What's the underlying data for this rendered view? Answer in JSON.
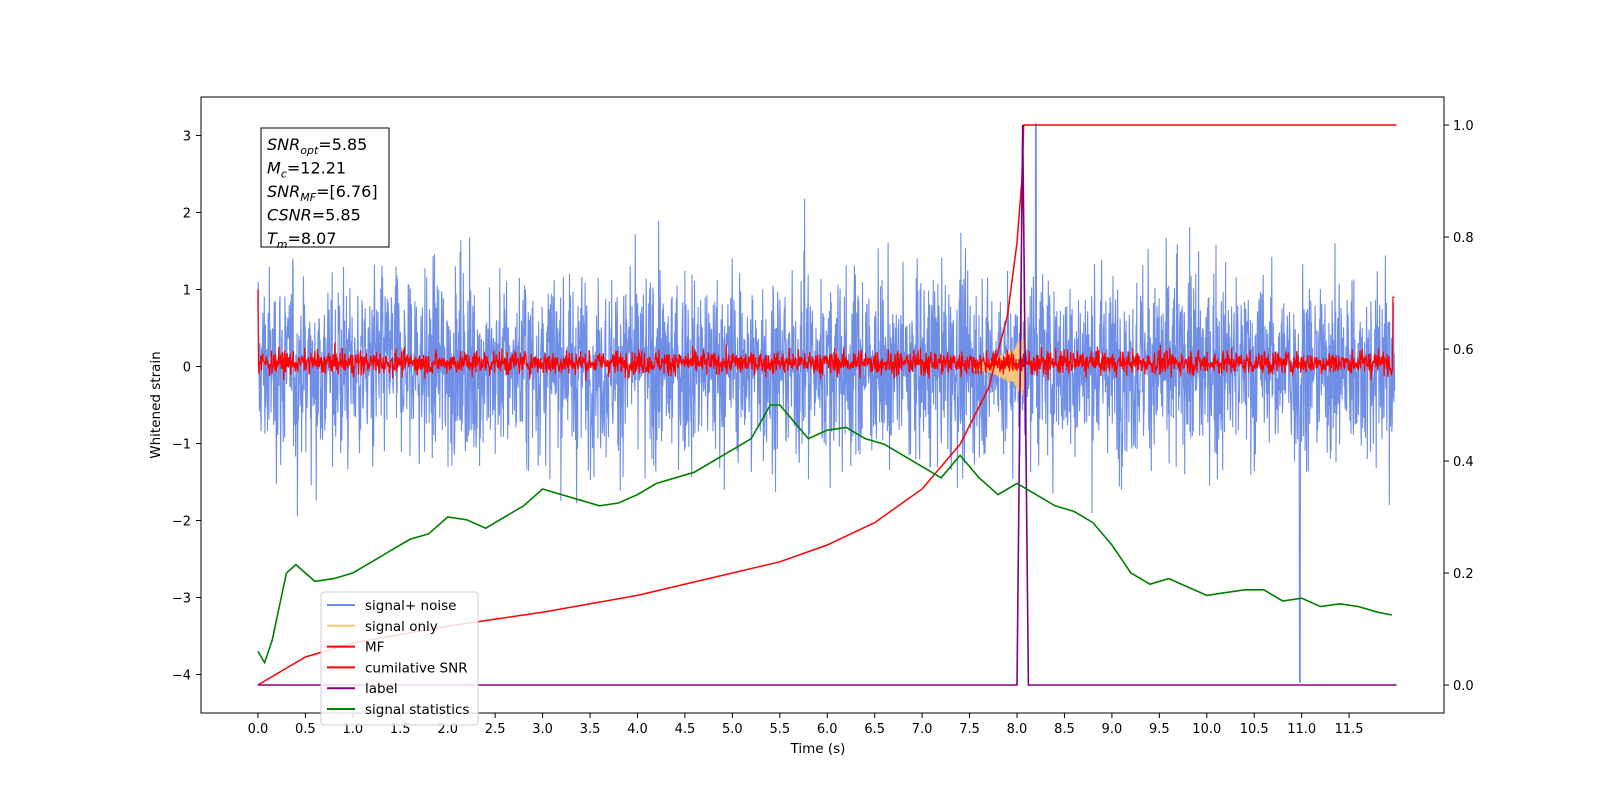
{
  "chart_data": {
    "type": "line",
    "xlabel": "Time (s)",
    "ylabel": "Whitened strain",
    "xlim": [
      -0.6,
      12.5
    ],
    "ylim": [
      -4.5,
      3.5
    ],
    "y2lim": [
      -0.05,
      1.05
    ],
    "x_ticks": [
      "0.0",
      "0.5",
      "1.0",
      "1.5",
      "2.0",
      "2.5",
      "3.0",
      "3.5",
      "4.0",
      "4.5",
      "5.0",
      "5.5",
      "6.0",
      "6.5",
      "7.0",
      "7.5",
      "8.0",
      "8.5",
      "9.0",
      "9.5",
      "10.0",
      "10.5",
      "11.0",
      "11.5"
    ],
    "y_ticks": [
      "3",
      "2",
      "1",
      "0",
      "−1",
      "−2",
      "−3",
      "−4"
    ],
    "y2_ticks": [
      "1.0",
      "0.8",
      "0.6",
      "0.4",
      "0.2",
      "0.0"
    ],
    "info_box": [
      {
        "main": "SNR",
        "sub": "opt",
        "rest": "=5.85"
      },
      {
        "main": "M",
        "sub": "c",
        "rest": "=12.21"
      },
      {
        "main": "SNR",
        "sub": "MF",
        "rest": "=[6.76]"
      },
      {
        "main": "CSNR",
        "sub": "",
        "rest": "=5.85"
      },
      {
        "main": "T",
        "sub": "m",
        "rest": "=8.07"
      }
    ],
    "legend_position": "lower-left",
    "series": [
      {
        "name": "signal+ noise",
        "color": "#6f8ee6",
        "axis": "left",
        "description": "whitened noisy strain, spans roughly -2.2 to 2.3 with spikes to 3.1 and -4.1"
      },
      {
        "name": "signal only",
        "color": "#f5c77e",
        "axis": "left",
        "description": "chirp visible near t=7.6-8.1 s, amplitude up to ~0.4"
      },
      {
        "name": "MF",
        "color": "#ff0000",
        "axis": "left",
        "description": "matched filter output, band roughly -0.2 to 0.3, starts at 1.0"
      },
      {
        "name": "cumilative SNR",
        "color": "#ff0000",
        "axis": "right",
        "x": [
          0.0,
          0.5,
          1.0,
          2.0,
          3.0,
          4.0,
          5.0,
          5.5,
          6.0,
          6.5,
          7.0,
          7.4,
          7.7,
          7.9,
          8.0,
          8.05,
          8.07,
          11.5,
          12.0
        ],
        "y": [
          0.0,
          0.05,
          0.075,
          0.105,
          0.13,
          0.16,
          0.2,
          0.22,
          0.25,
          0.29,
          0.35,
          0.43,
          0.53,
          0.66,
          0.79,
          0.9,
          1.0,
          1.0,
          1.0
        ]
      },
      {
        "name": "label",
        "color": "#800080",
        "axis": "right",
        "x": [
          0.0,
          8.0,
          8.06,
          8.12,
          12.0
        ],
        "y": [
          0.0,
          0.0,
          1.0,
          0.0,
          0.0
        ]
      },
      {
        "name": "signal statistics",
        "color": "#008000",
        "axis": "right",
        "x": [
          0.0,
          0.07,
          0.15,
          0.3,
          0.4,
          0.5,
          0.6,
          0.8,
          1.0,
          1.2,
          1.4,
          1.6,
          1.8,
          2.0,
          2.2,
          2.4,
          2.6,
          2.8,
          3.0,
          3.2,
          3.4,
          3.6,
          3.8,
          4.0,
          4.2,
          4.4,
          4.6,
          4.8,
          5.0,
          5.2,
          5.4,
          5.5,
          5.6,
          5.8,
          6.0,
          6.2,
          6.4,
          6.6,
          6.8,
          7.0,
          7.2,
          7.4,
          7.6,
          7.8,
          8.0,
          8.2,
          8.4,
          8.6,
          8.8,
          9.0,
          9.2,
          9.4,
          9.6,
          9.8,
          10.0,
          10.2,
          10.4,
          10.6,
          10.8,
          11.0,
          11.2,
          11.4,
          11.6,
          11.8,
          11.95
        ],
        "y": [
          0.06,
          0.04,
          0.08,
          0.2,
          0.215,
          0.2,
          0.185,
          0.19,
          0.2,
          0.22,
          0.24,
          0.26,
          0.27,
          0.3,
          0.295,
          0.28,
          0.3,
          0.32,
          0.35,
          0.34,
          0.33,
          0.32,
          0.325,
          0.34,
          0.36,
          0.37,
          0.38,
          0.4,
          0.42,
          0.44,
          0.5,
          0.5,
          0.48,
          0.44,
          0.455,
          0.46,
          0.44,
          0.43,
          0.41,
          0.39,
          0.37,
          0.41,
          0.37,
          0.34,
          0.36,
          0.34,
          0.32,
          0.31,
          0.29,
          0.25,
          0.2,
          0.18,
          0.19,
          0.175,
          0.16,
          0.165,
          0.17,
          0.17,
          0.15,
          0.155,
          0.14,
          0.145,
          0.14,
          0.13,
          0.125
        ]
      }
    ]
  }
}
